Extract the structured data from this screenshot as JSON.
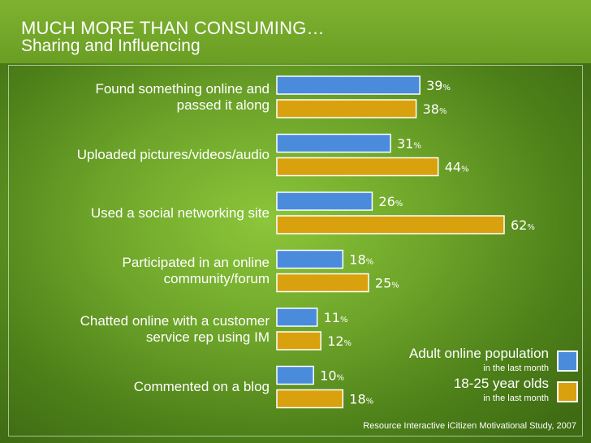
{
  "header": {
    "title": "MUCH MORE THAN CONSUMING…",
    "subtitle": "Sharing and Influencing"
  },
  "colors": {
    "adult": "#4a8bdc",
    "young": "#d9a10e",
    "background": "#6ea52a"
  },
  "chart_data": {
    "type": "bar",
    "orientation": "horizontal",
    "value_suffix": "%",
    "categories": [
      [
        "Found something online and",
        "passed it along"
      ],
      [
        "Uploaded pictures/videos/audio"
      ],
      [
        "Used a social networking site"
      ],
      [
        "Participated in an online",
        "community/forum"
      ],
      [
        "Chatted online with a customer",
        "service rep using IM"
      ],
      [
        "Commented on a blog"
      ]
    ],
    "series": [
      {
        "name": "Adult online population",
        "sublabel": "in the last month",
        "values": [
          39,
          31,
          26,
          18,
          11,
          10
        ]
      },
      {
        "name": "18-25 year olds",
        "sublabel": "in the last month",
        "values": [
          38,
          44,
          62,
          25,
          12,
          18
        ]
      }
    ],
    "xlim": [
      0,
      62
    ],
    "grid": false,
    "legend_position": "bottom-right"
  },
  "source": "Resource Interactive iCitizen Motivational Study, 2007"
}
